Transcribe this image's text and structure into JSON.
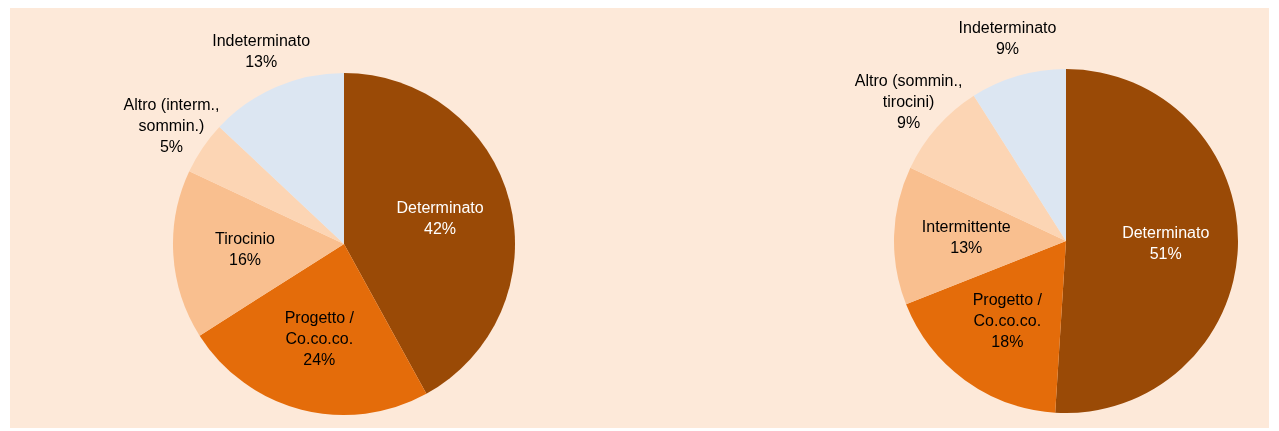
{
  "chart_data": [
    {
      "type": "pie",
      "categories": [
        "Determinato",
        "Progetto / Co.co.co.",
        "Tirocinio",
        "Altro (interm., sommin.)",
        "Indeterminato"
      ],
      "values": [
        42,
        24,
        16,
        5,
        13
      ],
      "value_labels": [
        "42%",
        "24%",
        "16%",
        "5%",
        "13%"
      ],
      "colors": [
        "#9a4a06",
        "#e46c0a",
        "#f9bf8f",
        "#fcd5b4",
        "#dce6f2"
      ],
      "legend": false
    },
    {
      "type": "pie",
      "categories": [
        "Determinato",
        "Progetto / Co.co.co.",
        "Intermittente",
        "Altro (sommin., tirocini)",
        "Indeterminato"
      ],
      "values": [
        51,
        18,
        13,
        9,
        9
      ],
      "value_labels": [
        "51%",
        "18%",
        "13%",
        "9%",
        "9%"
      ],
      "colors": [
        "#9a4a06",
        "#e46c0a",
        "#f9bf8f",
        "#fcd5b4",
        "#dce6f2"
      ],
      "legend": false
    }
  ]
}
